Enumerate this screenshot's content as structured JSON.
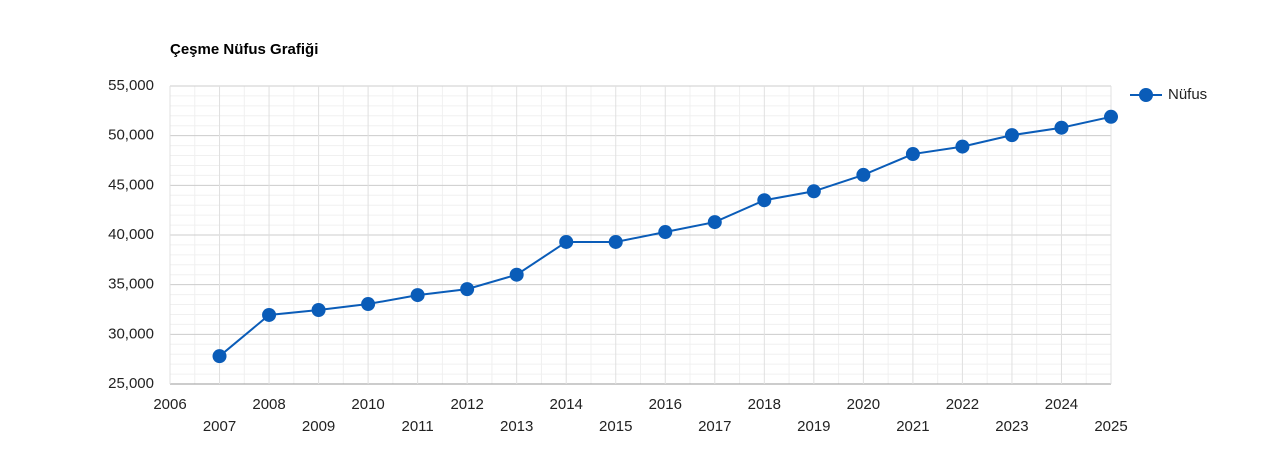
{
  "chart_data": {
    "type": "line",
    "title": "Çeşme Nüfus Grafiği",
    "x": [
      2007,
      2008,
      2009,
      2010,
      2011,
      2012,
      2013,
      2014,
      2015,
      2016,
      2017,
      2018,
      2019,
      2020,
      2021,
      2022,
      2023,
      2024,
      2025
    ],
    "series": [
      {
        "name": "Nüfus",
        "color": "#0a5cb8",
        "values": [
          27800,
          31950,
          32450,
          33050,
          33950,
          34550,
          36000,
          39300,
          39300,
          40300,
          41300,
          43500,
          44400,
          46050,
          48150,
          48900,
          50050,
          50800,
          51900
        ]
      }
    ],
    "xlim": [
      2006,
      2025
    ],
    "xticks": [
      2006,
      2007,
      2008,
      2009,
      2010,
      2011,
      2012,
      2013,
      2014,
      2015,
      2016,
      2017,
      2018,
      2019,
      2020,
      2021,
      2022,
      2023,
      2024,
      2025
    ],
    "ylim": [
      25000,
      55000
    ],
    "yticks": [
      {
        "value": 25000,
        "label": "25,000"
      },
      {
        "value": 30000,
        "label": "30,000"
      },
      {
        "value": 35000,
        "label": "35,000"
      },
      {
        "value": 40000,
        "label": "40,000"
      },
      {
        "value": 45000,
        "label": "45,000"
      },
      {
        "value": 50000,
        "label": "50,000"
      },
      {
        "value": 55000,
        "label": "55,000"
      }
    ],
    "grid": true,
    "legend": "right"
  }
}
